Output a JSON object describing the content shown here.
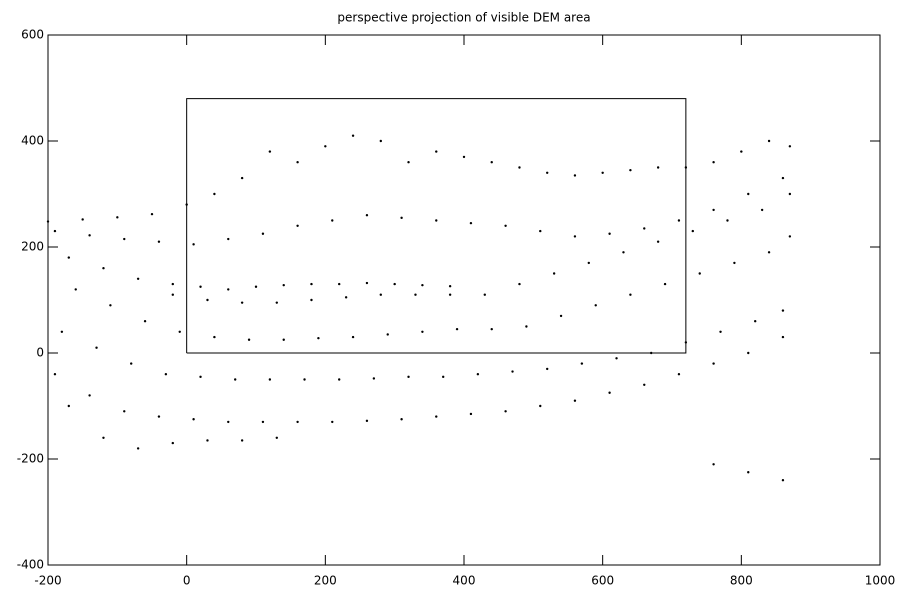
{
  "chart_data": {
    "type": "scatter",
    "title": "perspective projection of visible DEM area",
    "xlim": [
      -200,
      1000
    ],
    "ylim": [
      -400,
      600
    ],
    "xticks": [
      -200,
      0,
      200,
      400,
      600,
      800,
      1000
    ],
    "yticks": [
      -400,
      -200,
      0,
      200,
      400,
      600
    ],
    "series": [
      {
        "mode": "markers",
        "color": "#000000",
        "x": [
          -200,
          -150,
          -100,
          -50,
          0,
          40,
          80,
          120,
          160,
          200,
          240,
          280,
          320,
          360,
          400,
          440,
          480,
          520,
          560,
          600,
          640,
          680,
          720,
          760,
          800,
          840,
          870
        ],
        "values": [
          248,
          252,
          256,
          262,
          280,
          300,
          330,
          380,
          360,
          390,
          410,
          400,
          360,
          380,
          370,
          360,
          350,
          340,
          335,
          340,
          345,
          350,
          350,
          360,
          380,
          400,
          390
        ]
      },
      {
        "mode": "markers",
        "color": "#000000",
        "x": [
          -190,
          -140,
          -90,
          -40,
          10,
          60,
          110,
          160,
          210,
          260,
          310,
          360,
          410,
          460,
          510,
          560,
          610,
          660,
          710,
          760,
          810,
          860
        ],
        "values": [
          230,
          222,
          215,
          210,
          205,
          215,
          225,
          240,
          250,
          260,
          255,
          250,
          245,
          240,
          230,
          220,
          225,
          235,
          250,
          270,
          300,
          330
        ]
      },
      {
        "mode": "markers",
        "color": "#000000",
        "x": [
          -20,
          20,
          60,
          100,
          140,
          180,
          220,
          260,
          300,
          340,
          380
        ],
        "values": [
          130,
          125,
          120,
          125,
          128,
          130,
          130,
          132,
          130,
          128,
          126
        ]
      },
      {
        "mode": "markers",
        "color": "#000000",
        "x": [
          -170,
          -120,
          -70,
          -20,
          30,
          80,
          130,
          180,
          230,
          280,
          330,
          380,
          430,
          480,
          530,
          580,
          630,
          680,
          730,
          780,
          830,
          870
        ],
        "values": [
          180,
          160,
          140,
          110,
          100,
          95,
          95,
          100,
          105,
          110,
          110,
          110,
          110,
          130,
          150,
          170,
          190,
          210,
          230,
          250,
          270,
          300
        ]
      },
      {
        "mode": "markers",
        "color": "#000000",
        "x": [
          -160,
          -110,
          -60,
          -10,
          40,
          90,
          140,
          190,
          240,
          290,
          340,
          390,
          440,
          490,
          540,
          590,
          640,
          690,
          740,
          790,
          840,
          870
        ],
        "values": [
          120,
          90,
          60,
          40,
          30,
          25,
          25,
          28,
          30,
          35,
          40,
          45,
          45,
          50,
          70,
          90,
          110,
          130,
          150,
          170,
          190,
          220
        ]
      },
      {
        "mode": "markers",
        "color": "#000000",
        "x": [
          -180,
          -130,
          -80,
          -30,
          20,
          70,
          120,
          170,
          220,
          270,
          320,
          370,
          420,
          470,
          520,
          570,
          620,
          670,
          720,
          770,
          820,
          860
        ],
        "values": [
          40,
          10,
          -20,
          -40,
          -45,
          -50,
          -50,
          -50,
          -50,
          -48,
          -45,
          -45,
          -40,
          -35,
          -30,
          -20,
          -10,
          0,
          20,
          40,
          60,
          80
        ]
      },
      {
        "mode": "markers",
        "color": "#000000",
        "x": [
          -190,
          -140,
          -90,
          -40,
          10,
          60,
          110,
          160,
          210,
          260,
          310,
          360,
          410,
          460,
          510,
          560,
          610,
          660,
          710,
          760,
          810,
          860
        ],
        "values": [
          -40,
          -80,
          -110,
          -120,
          -125,
          -130,
          -130,
          -130,
          -130,
          -128,
          -125,
          -120,
          -115,
          -110,
          -100,
          -90,
          -75,
          -60,
          -40,
          -20,
          0,
          30
        ]
      },
      {
        "mode": "markers",
        "color": "#000000",
        "x": [
          -170,
          -120,
          -70,
          -20,
          30,
          80,
          130,
          760,
          810,
          860
        ],
        "values": [
          -100,
          -160,
          -180,
          -170,
          -165,
          -165,
          -160,
          -210,
          -225,
          -240
        ]
      },
      {
        "mode": "lines",
        "color": "#000000",
        "x": [
          0,
          720,
          720,
          0,
          0
        ],
        "values": [
          0,
          0,
          480,
          480,
          0
        ]
      }
    ]
  }
}
